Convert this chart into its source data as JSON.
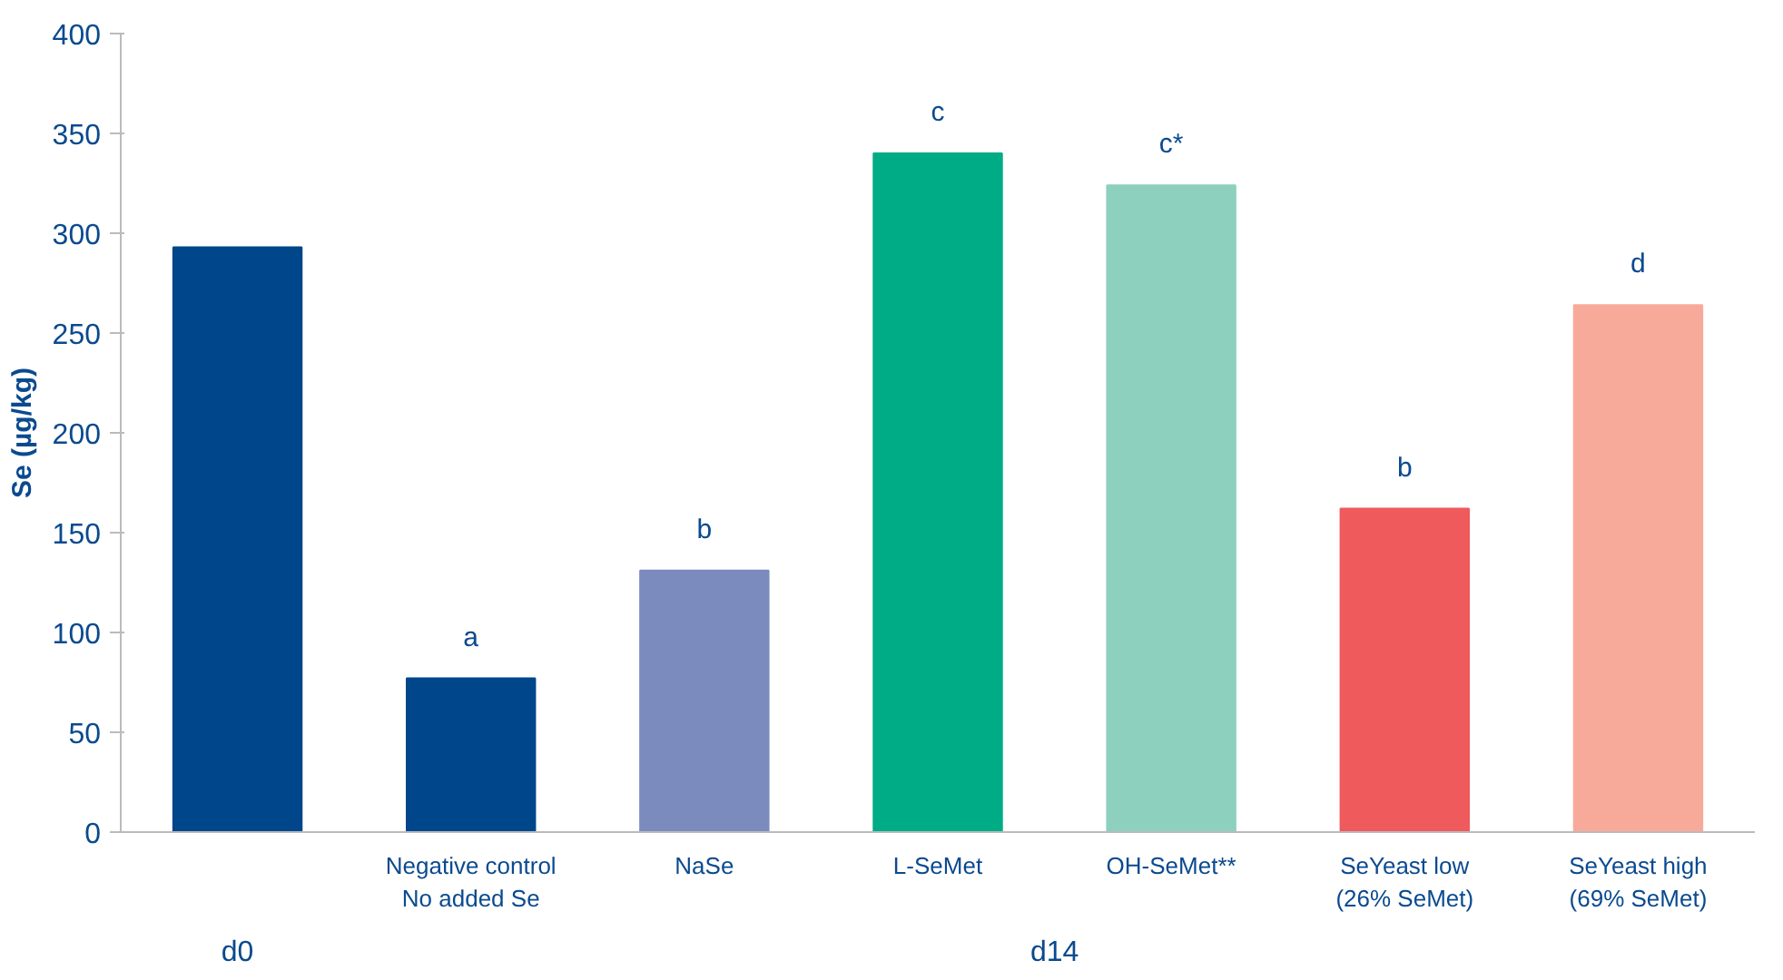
{
  "chart_data": {
    "type": "bar",
    "ylabel": "Se (µg/kg)",
    "categories": [
      null,
      "Negative control\nNo added Se",
      "NaSe",
      "L-SeMet",
      "OH-SeMet**",
      "SeYeast low\n(26% SeMet)",
      "SeYeast high\n(69% SeMet)"
    ],
    "values": [
      293,
      77,
      131,
      340,
      324,
      162,
      264
    ],
    "colors": [
      "#00468b",
      "#00468b",
      "#7b8bbd",
      "#00ac85",
      "#8dd0bd",
      "#ef5a5d",
      "#f8aa9a"
    ],
    "value_labels": [
      null,
      "a",
      "b",
      "c",
      "c*",
      "b",
      "d"
    ],
    "annotations": [
      "d0",
      "d14"
    ],
    "ylim": [
      0,
      400
    ],
    "yticks": [
      0,
      50,
      100,
      150,
      200,
      250,
      300,
      350,
      400
    ],
    "grid": false
  }
}
